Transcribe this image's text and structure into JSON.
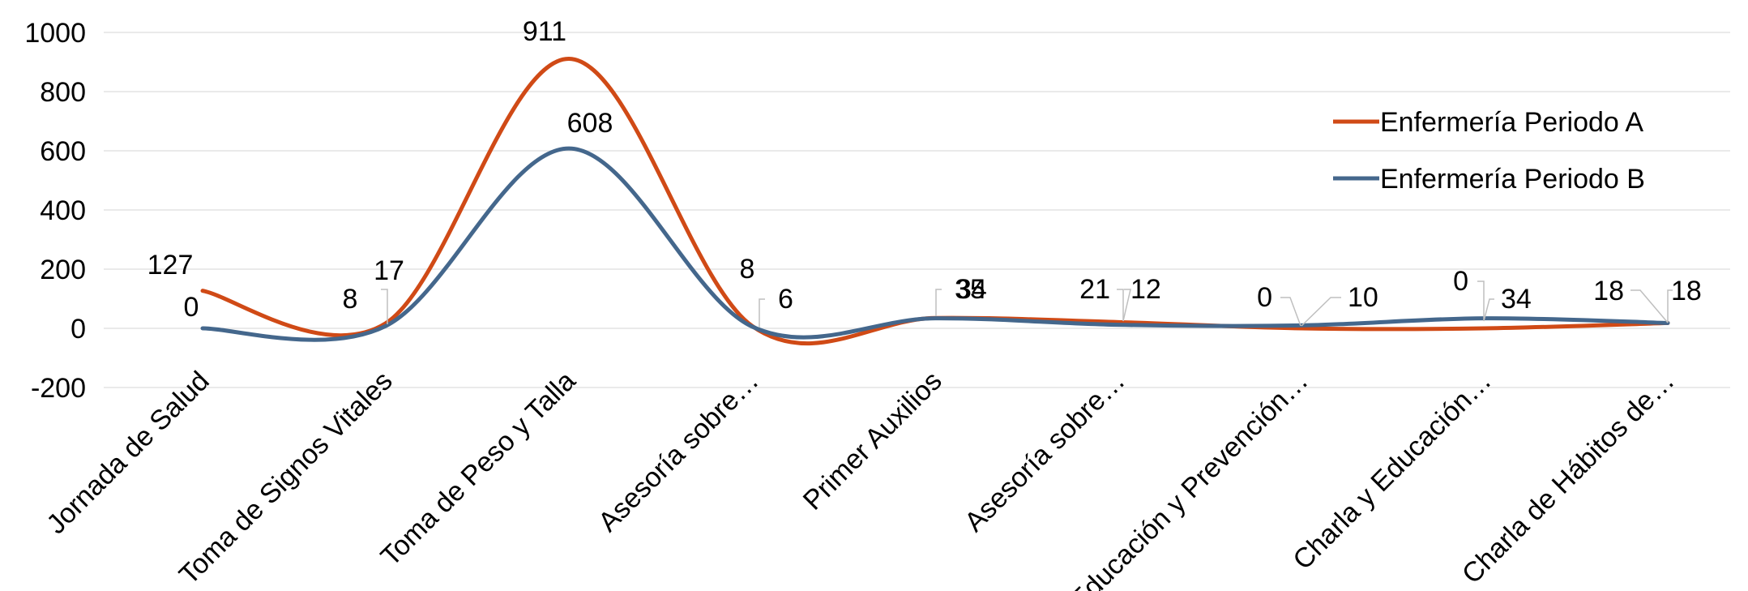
{
  "chart_data": {
    "type": "line",
    "smooth": true,
    "categories": [
      "Jornada de Salud",
      "Toma de Signos Vitales",
      "Toma de Peso y Talla",
      "Asesoría sobre…",
      "Primer Auxilios",
      "Asesoría sobre…",
      "Educación y Prevención…",
      "Charla y Educación…",
      "Charla de Hábitos de…"
    ],
    "series": [
      {
        "name": "Enfermería Periodo A",
        "color": "#d04a16",
        "values": [
          127,
          17,
          911,
          8,
          35,
          21,
          0,
          0,
          18
        ],
        "labels": [
          "127",
          "17",
          "911",
          "8",
          "35",
          "21",
          "0",
          "0",
          "18"
        ]
      },
      {
        "name": "Enfermería Periodo B",
        "color": "#44678c",
        "values": [
          0,
          8,
          608,
          6,
          34,
          12,
          10,
          34,
          18
        ],
        "labels": [
          "0",
          "8",
          "608",
          "6",
          "34",
          "12",
          "10",
          "34",
          "18"
        ]
      }
    ],
    "ylim": [
      -200,
      1000
    ],
    "yticks": [
      -200,
      0,
      200,
      400,
      600,
      800,
      1000
    ],
    "ytick_labels": [
      "-200",
      "0",
      "200",
      "400",
      "600",
      "800",
      "1000"
    ],
    "title": "",
    "xlabel": "",
    "ylabel": "",
    "grid": "horizontal",
    "legend_position": "right"
  }
}
